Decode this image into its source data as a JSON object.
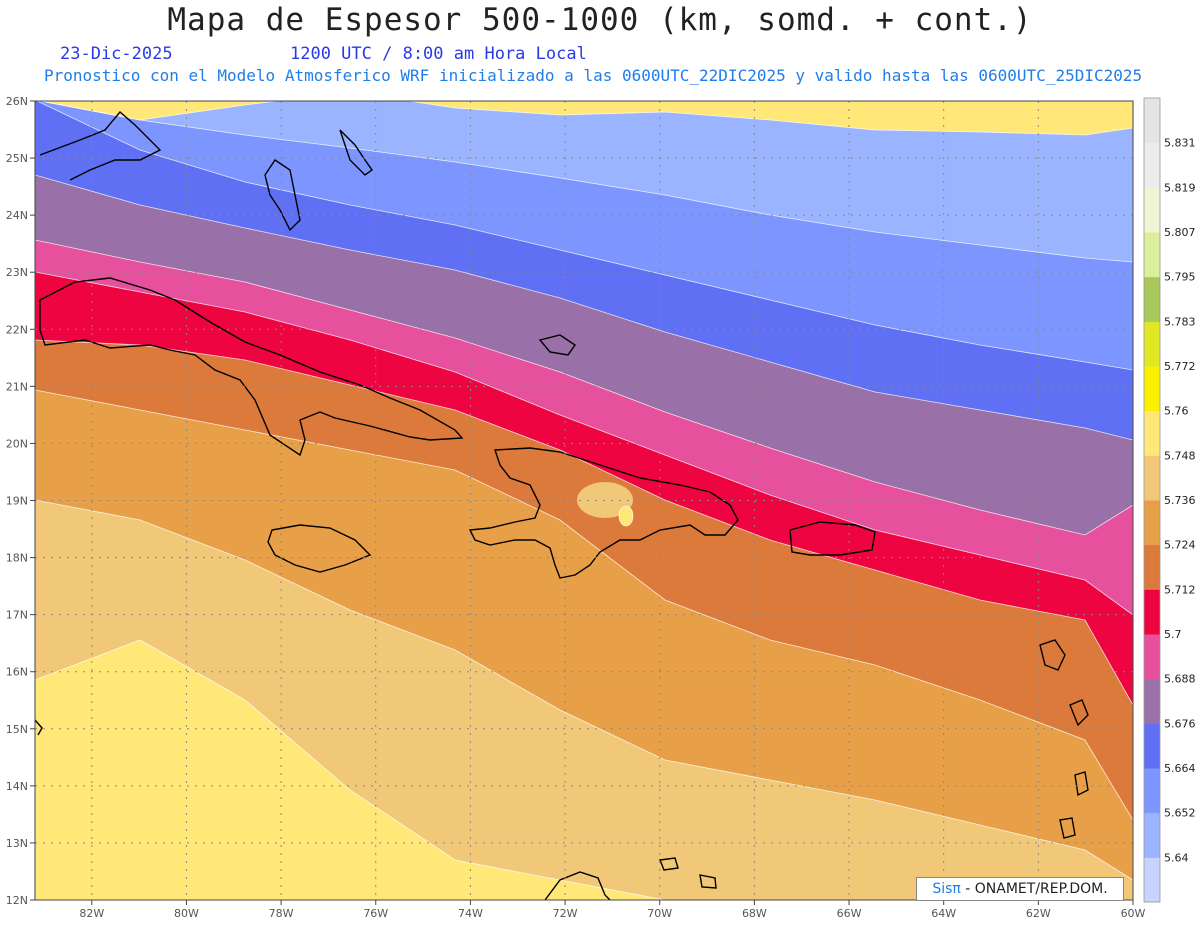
{
  "header": {
    "title": "Mapa de Espesor 500-1000 (km, somd. + cont.)",
    "date": "23-Dic-2025",
    "time": "1200 UTC / 8:00 am Hora Local",
    "forecast": "Pronostico con el Modelo Atmosferico WRF inicializado a las 0600UTC_22DIC2025 y valido hasta las  0600UTC_25DIC2025"
  },
  "axes": {
    "lon_labels": [
      "82W",
      "80W",
      "78W",
      "76W",
      "74W",
      "72W",
      "70W",
      "68W",
      "66W",
      "64W",
      "62W",
      "60W"
    ],
    "lat_labels": [
      "26N",
      "25N",
      "24N",
      "23N",
      "22N",
      "21N",
      "20N",
      "19N",
      "18N",
      "17N",
      "16N",
      "15N",
      "14N",
      "13N",
      "12N"
    ],
    "lon_range": [
      -83.2,
      -60
    ],
    "lat_range": [
      12,
      26
    ]
  },
  "legend": {
    "labels": [
      "5.64",
      "5.652",
      "5.664",
      "5.676",
      "5.688",
      "5.7",
      "5.712",
      "5.724",
      "5.736",
      "5.748",
      "5.76",
      "5.772",
      "5.783",
      "5.795",
      "5.807",
      "5.819",
      "5.831"
    ],
    "colors": [
      "#c6d4ff",
      "#9bb4ff",
      "#7d96ff",
      "#6070f5",
      "#9a70a8",
      "#e6509c",
      "#ee0440",
      "#dc7a3c",
      "#e8a048",
      "#f0c878",
      "#ffe878",
      "#fbf000",
      "#e0e824",
      "#a8c85c",
      "#dcf09c",
      "#f0f4d4",
      "#ececec",
      "#e4e4e4"
    ]
  },
  "credit": {
    "sis": "Sisπ",
    "org": "- ONAMET/REP.DOM."
  }
}
